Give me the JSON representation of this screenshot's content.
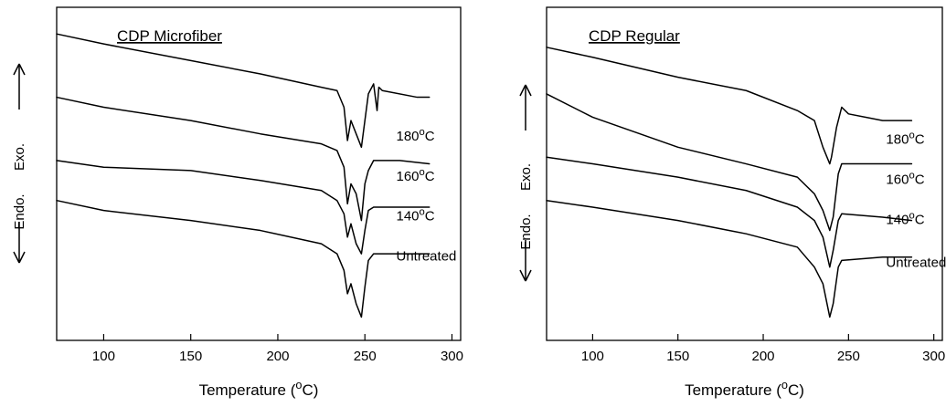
{
  "chart_data": [
    {
      "type": "line",
      "title": "CDP Microfiber",
      "xlabel": "Temperature (°C)",
      "ylabel_exo": "Exo.",
      "ylabel_endo": "Endo.",
      "x_ticks": [
        100,
        150,
        200,
        250,
        300
      ],
      "xlim": [
        73,
        305
      ],
      "ylim": [
        0,
        100
      ],
      "y_tick_labels": false,
      "grid": false,
      "series": [
        {
          "name": "180°C",
          "label_x": 268,
          "label_y": 60,
          "points": [
            [
              73,
              92
            ],
            [
              100,
              89
            ],
            [
              150,
              84
            ],
            [
              190,
              80
            ],
            [
              225,
              76
            ],
            [
              234,
              75
            ],
            [
              238,
              70
            ],
            [
              240,
              60
            ],
            [
              242,
              66
            ],
            [
              245,
              62
            ],
            [
              248,
              58
            ],
            [
              250,
              66
            ],
            [
              252,
              74
            ],
            [
              255,
              77
            ],
            [
              257,
              69
            ],
            [
              258,
              76
            ],
            [
              260,
              75
            ],
            [
              280,
              73
            ],
            [
              287,
              73
            ]
          ]
        },
        {
          "name": "160°C",
          "label_x": 268,
          "label_y": 48,
          "points": [
            [
              73,
              73
            ],
            [
              100,
              70
            ],
            [
              150,
              66
            ],
            [
              190,
              62
            ],
            [
              225,
              59
            ],
            [
              234,
              57
            ],
            [
              238,
              52
            ],
            [
              240,
              41
            ],
            [
              242,
              47
            ],
            [
              245,
              44
            ],
            [
              248,
              36
            ],
            [
              250,
              47
            ],
            [
              252,
              51
            ],
            [
              255,
              54
            ],
            [
              270,
              54
            ],
            [
              287,
              53
            ]
          ]
        },
        {
          "name": "140°C",
          "label_x": 268,
          "label_y": 36,
          "points": [
            [
              73,
              54
            ],
            [
              100,
              52
            ],
            [
              150,
              51
            ],
            [
              190,
              48
            ],
            [
              225,
              45
            ],
            [
              234,
              42
            ],
            [
              238,
              38
            ],
            [
              240,
              31
            ],
            [
              242,
              35
            ],
            [
              245,
              29
            ],
            [
              248,
              26
            ],
            [
              250,
              33
            ],
            [
              252,
              39
            ],
            [
              255,
              40
            ],
            [
              270,
              40
            ],
            [
              287,
              40
            ]
          ]
        },
        {
          "name": "Untreated",
          "label_x": 268,
          "label_y": 24,
          "points": [
            [
              73,
              42
            ],
            [
              100,
              39
            ],
            [
              150,
              36
            ],
            [
              190,
              33
            ],
            [
              225,
              29
            ],
            [
              234,
              26
            ],
            [
              238,
              21
            ],
            [
              240,
              14
            ],
            [
              242,
              17
            ],
            [
              245,
              11
            ],
            [
              248,
              7
            ],
            [
              250,
              16
            ],
            [
              252,
              24
            ],
            [
              255,
              26
            ],
            [
              270,
              26
            ],
            [
              287,
              26
            ]
          ]
        }
      ]
    },
    {
      "type": "line",
      "title": "CDP Regular",
      "xlabel": "Temperature (°C)",
      "ylabel_exo": "Exo.",
      "ylabel_endo": "Endo.",
      "x_ticks": [
        100,
        150,
        200,
        250,
        300
      ],
      "xlim": [
        73,
        305
      ],
      "ylim": [
        0,
        100
      ],
      "y_tick_labels": false,
      "grid": false,
      "series": [
        {
          "name": "180°C",
          "label_x": 272,
          "label_y": 59,
          "points": [
            [
              73,
              88
            ],
            [
              100,
              85
            ],
            [
              150,
              79
            ],
            [
              190,
              75
            ],
            [
              220,
              69
            ],
            [
              230,
              66
            ],
            [
              235,
              58
            ],
            [
              239,
              53
            ],
            [
              240,
              55
            ],
            [
              243,
              64
            ],
            [
              246,
              70
            ],
            [
              250,
              68
            ],
            [
              270,
              66
            ],
            [
              287,
              66
            ]
          ]
        },
        {
          "name": "160°C",
          "label_x": 272,
          "label_y": 47,
          "points": [
            [
              73,
              74
            ],
            [
              100,
              67
            ],
            [
              150,
              58
            ],
            [
              190,
              53
            ],
            [
              220,
              49
            ],
            [
              230,
              44
            ],
            [
              235,
              39
            ],
            [
              239,
              33
            ],
            [
              241,
              37
            ],
            [
              244,
              50
            ],
            [
              246,
              53
            ],
            [
              270,
              53
            ],
            [
              287,
              53
            ]
          ]
        },
        {
          "name": "140°C",
          "label_x": 272,
          "label_y": 35,
          "points": [
            [
              73,
              55
            ],
            [
              100,
              53
            ],
            [
              150,
              49
            ],
            [
              190,
              45
            ],
            [
              220,
              40
            ],
            [
              230,
              36
            ],
            [
              235,
              31
            ],
            [
              239,
              22
            ],
            [
              241,
              27
            ],
            [
              244,
              36
            ],
            [
              246,
              38
            ],
            [
              270,
              37
            ],
            [
              287,
              36
            ]
          ]
        },
        {
          "name": "Untreated",
          "label_x": 272,
          "label_y": 22,
          "points": [
            [
              73,
              42
            ],
            [
              100,
              40
            ],
            [
              150,
              36
            ],
            [
              190,
              32
            ],
            [
              220,
              28
            ],
            [
              230,
              22
            ],
            [
              235,
              17
            ],
            [
              239,
              7
            ],
            [
              241,
              11
            ],
            [
              244,
              22
            ],
            [
              246,
              24
            ],
            [
              270,
              25
            ],
            [
              287,
              25
            ]
          ]
        }
      ]
    }
  ]
}
